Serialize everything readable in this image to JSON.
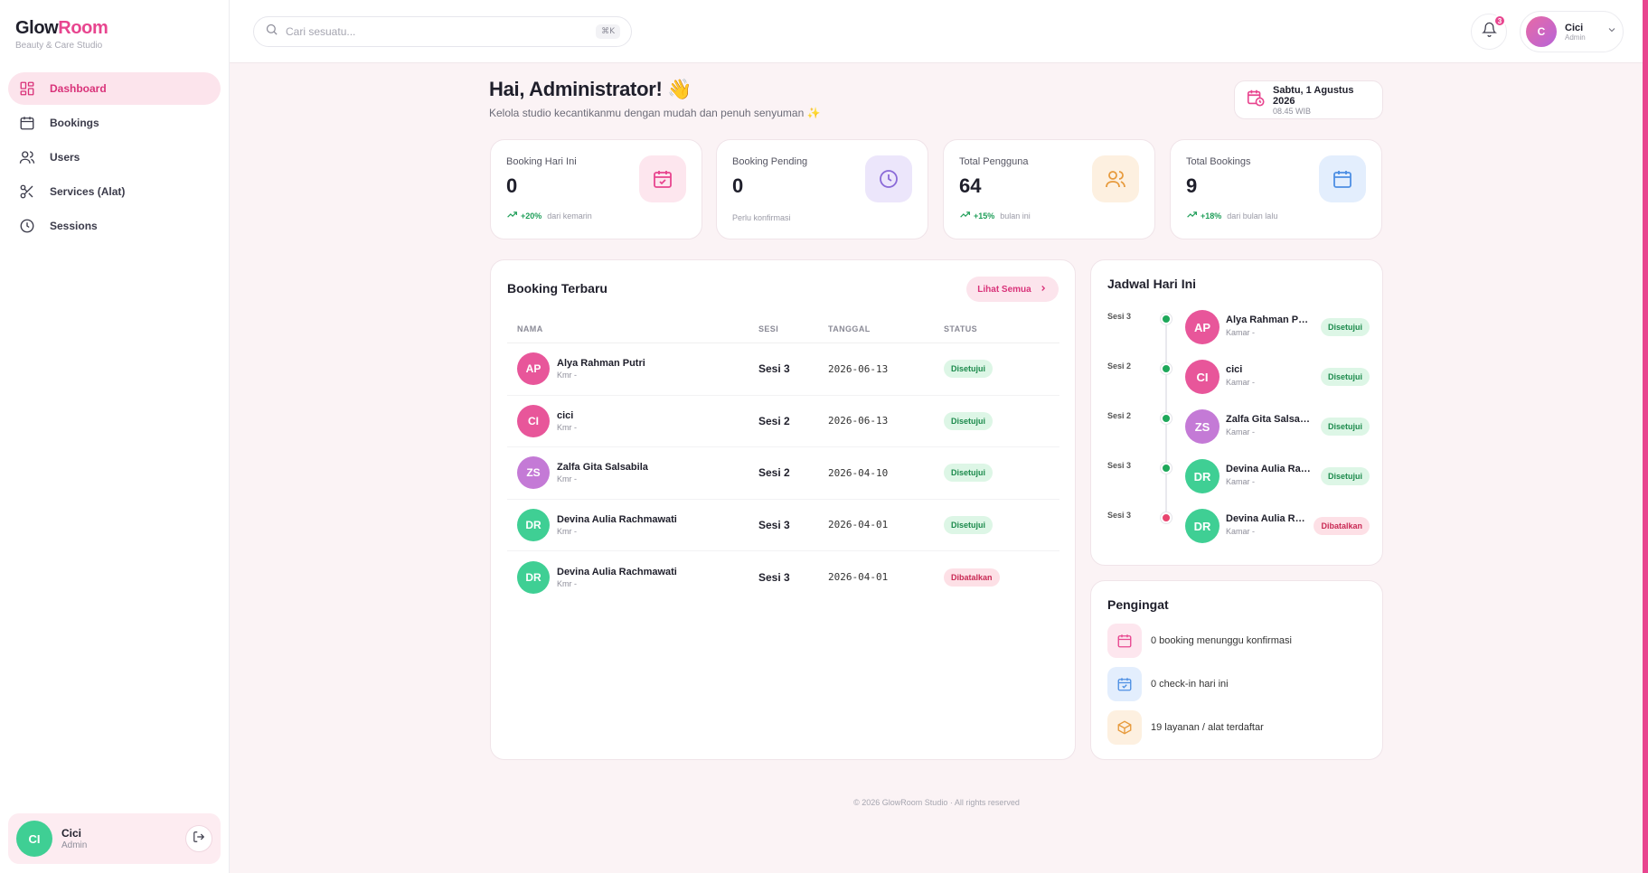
{
  "brand": {
    "name_a": "Glow",
    "name_b": "Room",
    "tagline": "Beauty & Care Studio",
    "accent": "#e8458f"
  },
  "sidebar": {
    "items": [
      {
        "label": "Dashboard",
        "icon": "grid-icon",
        "active": true
      },
      {
        "label": "Bookings",
        "icon": "calendar-icon"
      },
      {
        "label": "Users",
        "icon": "users-icon"
      },
      {
        "label": "Services (Alat)",
        "icon": "scissors-icon"
      },
      {
        "label": "Sessions",
        "icon": "clock-icon"
      }
    ],
    "user": {
      "initials": "CI",
      "name": "Cici",
      "role": "Admin"
    }
  },
  "topbar": {
    "search_placeholder": "Cari sesuatu...",
    "shortcut": "⌘K",
    "notification_count": "3",
    "profile": {
      "initial": "C",
      "name": "Cici",
      "role": "Admin"
    }
  },
  "greeting": {
    "title": "Hai, Administrator! 👋",
    "subtitle": "Kelola studio kecantikanmu dengan mudah dan penuh senyuman ✨"
  },
  "date": {
    "day": "Sabtu, 1 Agustus 2026",
    "time": "08.45 WIB"
  },
  "stats": [
    {
      "label": "Booking Hari Ini",
      "value": "0",
      "pct": "+20%",
      "note": "dari kemarin",
      "icon": "calendar-check-icon",
      "bg": "#fde6ee",
      "fg": "#e8458f"
    },
    {
      "label": "Booking Pending",
      "value": "0",
      "pct": "",
      "note": "Perlu konfirmasi",
      "icon": "clock-icon",
      "bg": "#ece6fb",
      "fg": "#8a6ad8"
    },
    {
      "label": "Total Pengguna",
      "value": "64",
      "pct": "+15%",
      "note": "bulan ini",
      "icon": "users-icon",
      "bg": "#fdf0e0",
      "fg": "#e79a3c"
    },
    {
      "label": "Total Bookings",
      "value": "9",
      "pct": "+18%",
      "note": "dari bulan lalu",
      "icon": "calendar-icon",
      "bg": "#e3eefd",
      "fg": "#4d8fe3"
    }
  ],
  "recent": {
    "title": "Booking Terbaru",
    "see_all": "Lihat Semua",
    "headers": [
      "NAMA",
      "SESI",
      "TANGGAL",
      "STATUS"
    ],
    "rows": [
      {
        "initials": "AP",
        "name": "Alya Rahman Putri",
        "room": "Kmr -",
        "session": "Sesi 3",
        "date": "2026-06-13",
        "status": "Disetujui",
        "ok": true,
        "color": "#e8569a"
      },
      {
        "initials": "CI",
        "name": "cici",
        "room": "Kmr -",
        "session": "Sesi 2",
        "date": "2026-06-13",
        "status": "Disetujui",
        "ok": true,
        "color": "#e8569a"
      },
      {
        "initials": "ZS",
        "name": "Zalfa Gita Salsabila",
        "room": "Kmr -",
        "session": "Sesi 2",
        "date": "2026-04-10",
        "status": "Disetujui",
        "ok": true,
        "color": "#c47ad6"
      },
      {
        "initials": "DR",
        "name": "Devina Aulia Rachmawati",
        "room": "Kmr -",
        "session": "Sesi 3",
        "date": "2026-04-01",
        "status": "Disetujui",
        "ok": true,
        "color": "#3fcf94"
      },
      {
        "initials": "DR",
        "name": "Devina Aulia Rachmawati",
        "room": "Kmr -",
        "session": "Sesi 3",
        "date": "2026-04-01",
        "status": "Dibatalkan",
        "ok": false,
        "color": "#3fcf94"
      }
    ]
  },
  "schedule": {
    "title": "Jadwal Hari Ini",
    "rows": [
      {
        "session": "Sesi 3",
        "initials": "AP",
        "name": "Alya Rahman Putri",
        "room": "Kamar -",
        "status": "Disetujui",
        "ok": true,
        "color": "#e8569a"
      },
      {
        "session": "Sesi 2",
        "initials": "CI",
        "name": "cici",
        "room": "Kamar -",
        "status": "Disetujui",
        "ok": true,
        "color": "#e8569a"
      },
      {
        "session": "Sesi 2",
        "initials": "ZS",
        "name": "Zalfa Gita Salsabila",
        "room": "Kamar -",
        "status": "Disetujui",
        "ok": true,
        "color": "#c47ad6"
      },
      {
        "session": "Sesi 3",
        "initials": "DR",
        "name": "Devina Aulia Rachmawati",
        "room": "Kamar -",
        "status": "Disetujui",
        "ok": true,
        "color": "#3fcf94"
      },
      {
        "session": "Sesi 3",
        "initials": "DR",
        "name": "Devina Aulia Rachmawati",
        "room": "Kamar -",
        "status": "Dibatalkan",
        "ok": false,
        "color": "#3fcf94"
      }
    ]
  },
  "reminders": {
    "title": "Pengingat",
    "items": [
      {
        "text": "0 booking menunggu konfirmasi",
        "icon": "calendar-icon",
        "bg": "#fde6ee",
        "fg": "#e8458f"
      },
      {
        "text": "0 check-in hari ini",
        "icon": "calendar-check-icon",
        "bg": "#e3eefd",
        "fg": "#4d8fe3"
      },
      {
        "text": "19 layanan / alat terdaftar",
        "icon": "box-icon",
        "bg": "#fdf0e0",
        "fg": "#e79a3c"
      }
    ]
  },
  "footer": "© 2026 GlowRoom Studio · All rights reserved"
}
